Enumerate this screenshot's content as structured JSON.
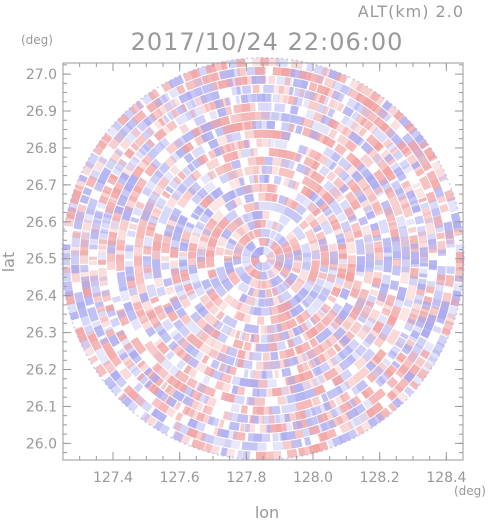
{
  "header": {
    "alt_label": "ALT(km)  2.0",
    "datetime": "2017/10/24 22:06:00"
  },
  "chart_data": {
    "type": "heatmap",
    "title": "2017/10/24 22:06:00",
    "subtitle": "ALT(km)  2.0",
    "xlabel": "lon",
    "ylabel": "lat",
    "x_unit": "(deg)",
    "y_unit": "(deg)",
    "xlim": [
      127.25,
      128.45
    ],
    "ylim": [
      25.955,
      27.03
    ],
    "x_ticks": [
      127.4,
      127.6,
      127.8,
      128.0,
      128.2,
      128.4
    ],
    "x_tick_labels": [
      "127.4",
      "127.6",
      "127.8",
      "128.0",
      "128.2",
      "128.4"
    ],
    "y_ticks": [
      26.0,
      26.1,
      26.2,
      26.3,
      26.4,
      26.5,
      26.6,
      26.7,
      26.8,
      26.9,
      27.0
    ],
    "y_tick_labels": [
      "26.0",
      "26.1",
      "26.2",
      "26.3",
      "26.4",
      "26.5",
      "26.6",
      "26.7",
      "26.8",
      "26.9",
      "27.0"
    ],
    "center": {
      "lon": 127.85,
      "lat": 26.5
    },
    "grid": false,
    "colors": {
      "positive": "#f2a0a0",
      "negative": "#a8a8f0",
      "neutral": "#ffffff",
      "axis": "#999999"
    }
  }
}
